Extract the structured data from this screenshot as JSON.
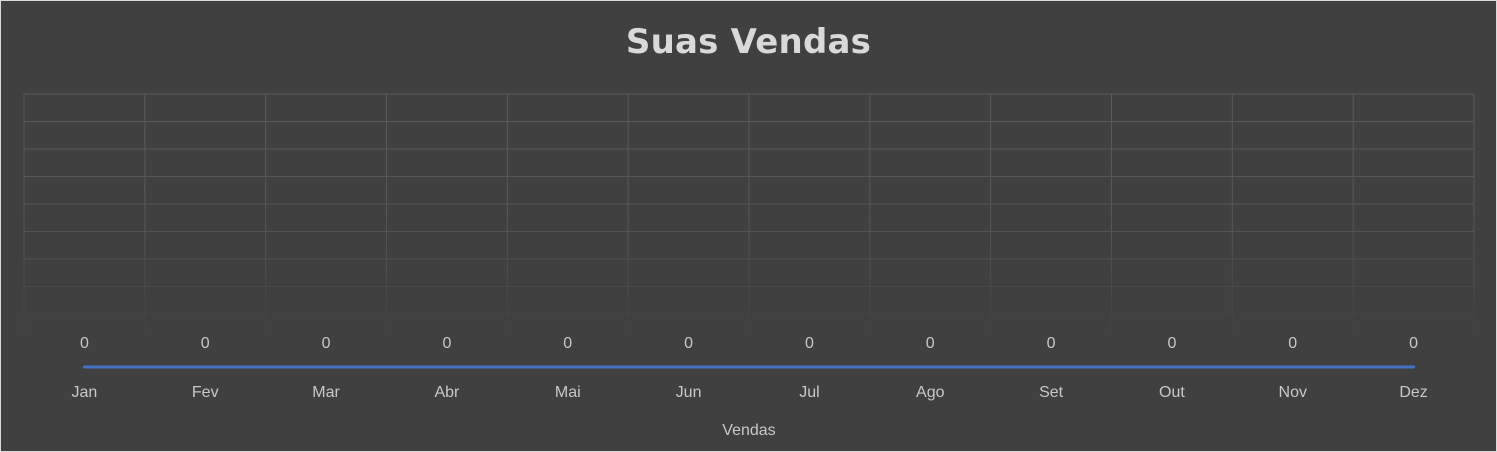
{
  "chart_data": {
    "type": "line",
    "title": "Suas Vendas",
    "categories": [
      "Jan",
      "Fev",
      "Mar",
      "Abr",
      "Mai",
      "Jun",
      "Jul",
      "Ago",
      "Set",
      "Out",
      "Nov",
      "Dez"
    ],
    "series": [
      {
        "values": [
          0,
          0,
          0,
          0,
          0,
          0,
          0,
          0,
          0,
          0,
          0,
          0
        ],
        "color": "#4472c4"
      }
    ],
    "xlabel": "Vendas",
    "ylabel": "",
    "grid": true,
    "data_labels": true,
    "legend": "none"
  },
  "colors": {
    "background": "#404040",
    "grid": "#595959",
    "text": "#d9d9d9",
    "line": "#4472c4"
  }
}
